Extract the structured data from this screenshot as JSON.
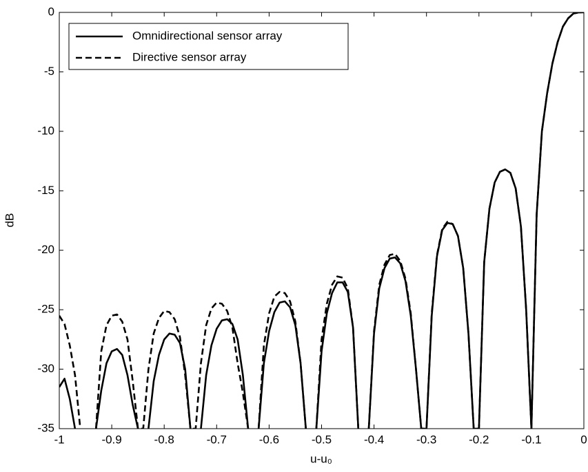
{
  "chart_data": {
    "type": "line",
    "x_label": "u-u₀",
    "y_label": "dB",
    "xlim": [
      -1,
      0
    ],
    "ylim": [
      -35,
      0
    ],
    "xticks": [
      -1,
      -0.9,
      -0.8,
      -0.7,
      -0.6,
      -0.5,
      -0.4,
      -0.3,
      -0.2,
      -0.1,
      0
    ],
    "yticks": [
      -35,
      -30,
      -25,
      -20,
      -15,
      -10,
      -5,
      0
    ],
    "legend": "northwest",
    "x": [
      -1,
      -0.99,
      -0.98,
      -0.97,
      -0.96,
      -0.95,
      -0.94,
      -0.93,
      -0.92,
      -0.91,
      -0.9,
      -0.89,
      -0.88,
      -0.87,
      -0.86,
      -0.85,
      -0.84,
      -0.83,
      -0.82,
      -0.81,
      -0.8,
      -0.79,
      -0.78,
      -0.77,
      -0.76,
      -0.75,
      -0.74,
      -0.73,
      -0.72,
      -0.71,
      -0.7,
      -0.69,
      -0.68,
      -0.67,
      -0.66,
      -0.65,
      -0.64,
      -0.63,
      -0.62,
      -0.61,
      -0.6,
      -0.59,
      -0.58,
      -0.57,
      -0.56,
      -0.55,
      -0.54,
      -0.53,
      -0.52,
      -0.51,
      -0.5,
      -0.49,
      -0.48,
      -0.47,
      -0.46,
      -0.45,
      -0.44,
      -0.43,
      -0.42,
      -0.41,
      -0.4,
      -0.39,
      -0.38,
      -0.37,
      -0.36,
      -0.35,
      -0.34,
      -0.33,
      -0.32,
      -0.31,
      -0.3,
      -0.29,
      -0.28,
      -0.27,
      -0.26,
      -0.25,
      -0.24,
      -0.23,
      -0.22,
      -0.21,
      -0.2,
      -0.19,
      -0.18,
      -0.17,
      -0.16,
      -0.15,
      -0.14,
      -0.13,
      -0.12,
      -0.11,
      -0.1,
      -0.09,
      -0.08,
      -0.07,
      -0.06,
      -0.05,
      -0.04,
      -0.03,
      -0.02,
      -0.01,
      0
    ],
    "series": [
      {
        "name": "Omnidirectional sensor array",
        "color": "#000000",
        "linestyle": "solid",
        "values": [
          -31.5,
          -30.8,
          -32.5,
          -35,
          null,
          null,
          null,
          -35,
          -31.8,
          -29.5,
          -28.5,
          -28.3,
          -28.8,
          -30.5,
          -33,
          -35,
          null,
          -35,
          -31,
          -28.8,
          -27.5,
          -27,
          -27.1,
          -27.8,
          -30,
          -35,
          null,
          -35,
          -30.5,
          -28,
          -26.6,
          -25.9,
          -25.8,
          -26.2,
          -27.5,
          -30.5,
          -35,
          null,
          -35,
          -29.5,
          -26.8,
          -25.2,
          -24.4,
          -24.3,
          -24.8,
          -26.3,
          -29.5,
          -35,
          null,
          -35,
          -28.5,
          -25.3,
          -23.6,
          -22.7,
          -22.7,
          -23.5,
          -26.5,
          -35,
          null,
          -35,
          -27,
          -23.2,
          -21.5,
          -20.7,
          -20.6,
          -21.1,
          -22.6,
          -25.5,
          -30,
          -35,
          -35,
          -25.5,
          -20.5,
          -18.3,
          -17.7,
          -17.8,
          -18.8,
          -21.5,
          -27,
          -35,
          -35,
          -21,
          -16.5,
          -14.3,
          -13.4,
          -13.2,
          -13.5,
          -14.8,
          -18,
          -25,
          -35,
          -17,
          -10,
          -6.8,
          -4.3,
          -2.5,
          -1.2,
          -0.5,
          -0.1,
          0,
          0
        ]
      },
      {
        "name": "Directive sensor array",
        "color": "#000000",
        "linestyle": "dashed",
        "values": [
          -25.5,
          -26.2,
          -28,
          -30.5,
          -35,
          null,
          null,
          -35,
          -28.5,
          -26.3,
          -25.5,
          -25.4,
          -26,
          -27.5,
          -31,
          -35,
          -35,
          -30,
          -27,
          -25.7,
          -25.1,
          -25.2,
          -25.8,
          -27.3,
          -30.5,
          -35,
          -35,
          -29.5,
          -26.3,
          -24.9,
          -24.4,
          -24.5,
          -25.1,
          -26.5,
          -29.5,
          -32,
          -35,
          null,
          -35,
          -28,
          -25.3,
          -23.9,
          -23.5,
          -23.6,
          -24.3,
          -26,
          -29.5,
          -35,
          null,
          -35,
          -27.5,
          -24.5,
          -22.9,
          -22.2,
          -22.3,
          -23.2,
          -26.5,
          -35,
          null,
          -35,
          -26.8,
          -22.9,
          -21.2,
          -20.4,
          -20.3,
          -20.9,
          -22.4,
          -25.3,
          -30,
          -35,
          -35,
          -25.3,
          -20.4,
          -18.2,
          -17.6,
          -17.8,
          -18.8,
          -21.5,
          -27,
          -35,
          -35,
          -21,
          -16.5,
          -14.3,
          -13.4,
          -13.2,
          -13.5,
          -14.8,
          -18,
          -25,
          -35,
          -17,
          -10,
          -6.8,
          -4.3,
          -2.5,
          -1.2,
          -0.5,
          -0.1,
          0,
          0
        ]
      }
    ]
  }
}
